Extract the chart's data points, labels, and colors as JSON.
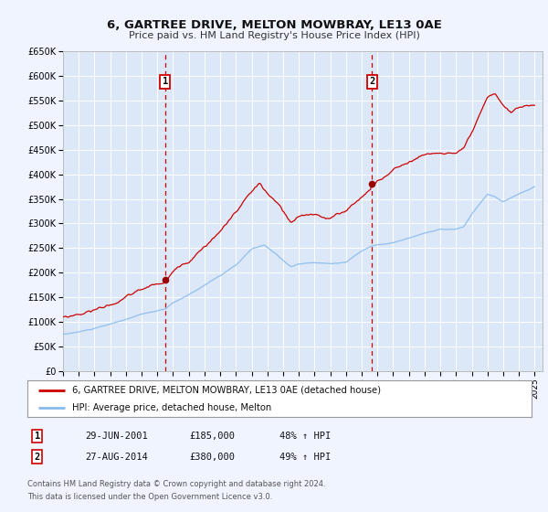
{
  "title": "6, GARTREE DRIVE, MELTON MOWBRAY, LE13 0AE",
  "subtitle": "Price paid vs. HM Land Registry's House Price Index (HPI)",
  "ylim": [
    0,
    650000
  ],
  "yticks": [
    0,
    50000,
    100000,
    150000,
    200000,
    250000,
    300000,
    350000,
    400000,
    450000,
    500000,
    550000,
    600000,
    650000
  ],
  "ytick_labels": [
    "£0",
    "£50K",
    "£100K",
    "£150K",
    "£200K",
    "£250K",
    "£300K",
    "£350K",
    "£400K",
    "£450K",
    "£500K",
    "£550K",
    "£600K",
    "£650K"
  ],
  "xlim_start": 1995.0,
  "xlim_end": 2025.5,
  "xtick_years": [
    1995,
    1996,
    1997,
    1998,
    1999,
    2000,
    2001,
    2002,
    2003,
    2004,
    2005,
    2006,
    2007,
    2008,
    2009,
    2010,
    2011,
    2012,
    2013,
    2014,
    2015,
    2016,
    2017,
    2018,
    2019,
    2020,
    2021,
    2022,
    2023,
    2024,
    2025
  ],
  "fig_bg_color": "#f0f4ff",
  "plot_bg_color": "#dce8f8",
  "grid_color": "#ffffff",
  "red_line_color": "#cc0000",
  "blue_line_color": "#88bbee",
  "marker_color": "#990000",
  "vline_color": "#cc0000",
  "transaction1_x": 2001.49,
  "transaction1_y": 185000,
  "transaction1_label": "29-JUN-2001",
  "transaction1_price": "£185,000",
  "transaction1_hpi": "48% ↑ HPI",
  "transaction2_x": 2014.65,
  "transaction2_y": 380000,
  "transaction2_label": "27-AUG-2014",
  "transaction2_price": "£380,000",
  "transaction2_hpi": "49% ↑ HPI",
  "legend_label_red": "6, GARTREE DRIVE, MELTON MOWBRAY, LE13 0AE (detached house)",
  "legend_label_blue": "HPI: Average price, detached house, Melton",
  "footer1": "Contains HM Land Registry data © Crown copyright and database right 2024.",
  "footer2": "This data is licensed under the Open Government Licence v3.0."
}
